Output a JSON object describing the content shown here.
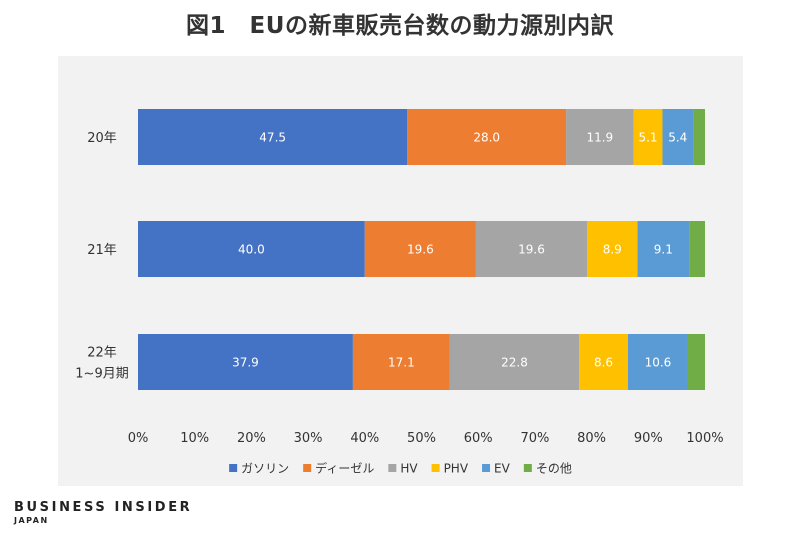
{
  "title": "図1　EUの新車販売台数の動力源別内訳",
  "brand": {
    "name": "BUSINESS INSIDER",
    "region": "JAPAN"
  },
  "colors": {
    "plot_background": "#f2f2f2",
    "bar_label": "#ffffff",
    "axis_text": "#333333"
  },
  "chart_data": {
    "type": "bar",
    "orientation": "horizontal",
    "stacked": true,
    "categories": [
      {
        "lines": [
          "20年"
        ]
      },
      {
        "lines": [
          "21年"
        ]
      },
      {
        "lines": [
          "22年",
          "1~9月期"
        ]
      }
    ],
    "series": [
      {
        "name": "ガソリン",
        "color": "#4472c4",
        "values": [
          47.5,
          40.0,
          37.9
        ],
        "labels": [
          "47.5",
          "40.0",
          "37.9"
        ],
        "label_color": "#ffffff"
      },
      {
        "name": "ディーゼル",
        "color": "#ed7d31",
        "values": [
          28.0,
          19.6,
          17.1
        ],
        "labels": [
          "28.0",
          "19.6",
          "17.1"
        ],
        "label_color": "#ffffff"
      },
      {
        "name": "HV",
        "color": "#a5a5a5",
        "values": [
          11.9,
          19.6,
          22.8
        ],
        "labels": [
          "11.9",
          "19.6",
          "22.8"
        ],
        "label_color": "#ffffff"
      },
      {
        "name": "PHV",
        "color": "#ffc000",
        "values": [
          5.1,
          8.9,
          8.6
        ],
        "labels": [
          "5.1",
          "8.9",
          "8.6"
        ],
        "label_color": "#ffffff"
      },
      {
        "name": "EV",
        "color": "#5b9bd5",
        "values": [
          5.4,
          9.1,
          10.6
        ],
        "labels": [
          "5.4",
          "9.1",
          "10.6"
        ],
        "label_color": "#ffffff"
      },
      {
        "name": "その他",
        "color": "#70ad47",
        "values": [
          2.1,
          2.8,
          3.0
        ],
        "labels": [
          "",
          "",
          ""
        ],
        "label_color": "#ffffff"
      }
    ],
    "xlim": [
      0,
      100
    ],
    "xticks": [
      "0%",
      "10%",
      "20%",
      "30%",
      "40%",
      "50%",
      "60%",
      "70%",
      "80%",
      "90%",
      "100%"
    ],
    "grid": false,
    "legend_position": "bottom"
  }
}
